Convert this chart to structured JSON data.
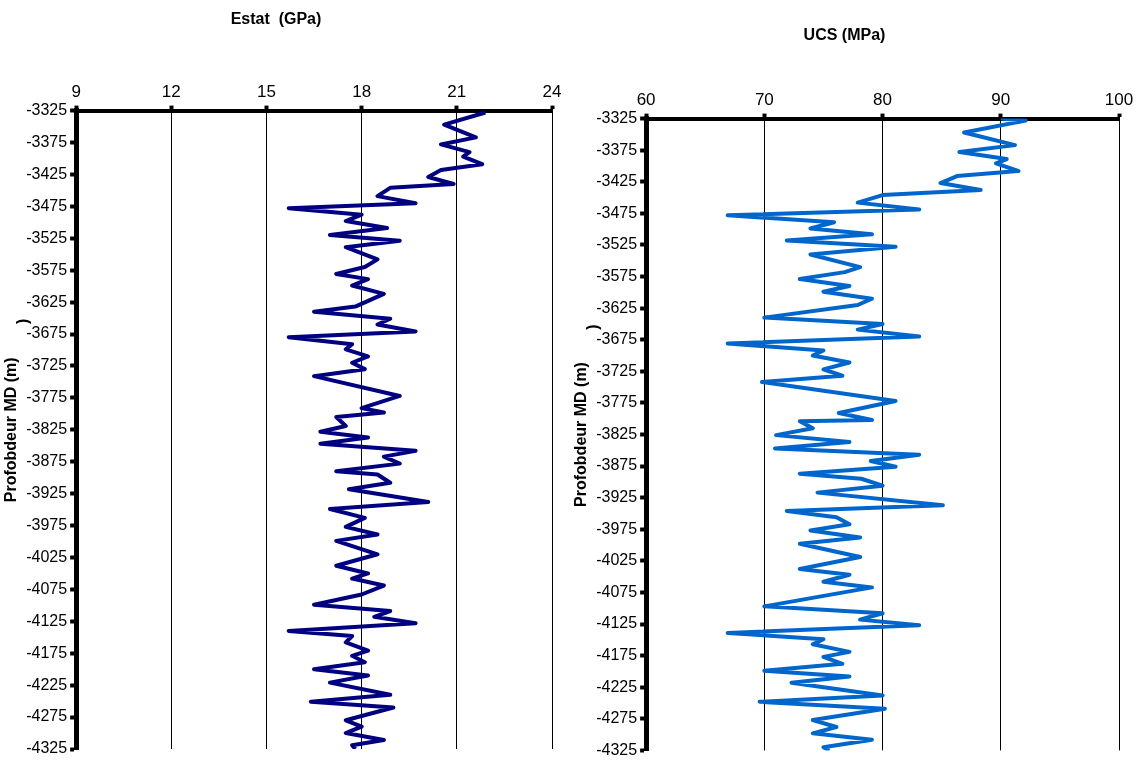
{
  "chart_data": [
    {
      "type": "line",
      "title": "Estat  (GPa)",
      "ylabel": "Profobdeur MD (m)",
      "annotations": [
        ")"
      ],
      "xlim": [
        9,
        24
      ],
      "xticks": [
        9,
        12,
        15,
        18,
        21,
        24
      ],
      "ylim": [
        -4325,
        -3325
      ],
      "yticks": [
        -3325,
        -3375,
        -3425,
        -3475,
        -3525,
        -3575,
        -3625,
        -3675,
        -3725,
        -3775,
        -3825,
        -3875,
        -3925,
        -3975,
        -4025,
        -4075,
        -4125,
        -4175,
        -4225,
        -4275,
        -4325
      ],
      "grid": "x",
      "legend": false,
      "marker": "none",
      "line_style": "solid",
      "series": [
        {
          "color": "#000080",
          "x": [
            21.9,
            20.6,
            21.6,
            20.5,
            21.4,
            21.2,
            21.8,
            20.5,
            20.1,
            20.9,
            18.9,
            18.5,
            19.7,
            15.7,
            18.0,
            17.5,
            18.8,
            17.0,
            19.2,
            17.5,
            18.5,
            18.1,
            17.2,
            18.2,
            17.7,
            18.7,
            17.8,
            16.5,
            18.9,
            18.5,
            19.7,
            15.7,
            17.7,
            17.5,
            18.2,
            17.7,
            18.1,
            16.5,
            19.2,
            18.0,
            18.7,
            17.2,
            17.5,
            16.7,
            18.2,
            16.7,
            19.7,
            18.7,
            19.2,
            17.2,
            18.5,
            18.9,
            17.6,
            20.1,
            17.0,
            18.1,
            17.5,
            18.5,
            17.2,
            18.5,
            17.2,
            18.2,
            17.7,
            18.7,
            18.0,
            16.5,
            18.9,
            18.4,
            19.7,
            15.7,
            17.7,
            17.5,
            18.2,
            17.7,
            18.1,
            16.5,
            18.2,
            17.0,
            18.9,
            16.4,
            19.0,
            17.5,
            18.0,
            17.5,
            18.7,
            17.7,
            17.8
          ],
          "values": [
            -3328,
            -3347,
            -3367,
            -3378,
            -3390,
            -3397,
            -3409,
            -3418,
            -3429,
            -3440,
            -3446,
            -3459,
            -3470,
            -3478,
            -3488,
            -3498,
            -3509,
            -3520,
            -3529,
            -3539,
            -3558,
            -3570,
            -3581,
            -3589,
            -3599,
            -3612,
            -3632,
            -3640,
            -3651,
            -3660,
            -3671,
            -3680,
            -3691,
            -3699,
            -3710,
            -3720,
            -3730,
            -3741,
            -3772,
            -3791,
            -3798,
            -3805,
            -3819,
            -3828,
            -3837,
            -3847,
            -3858,
            -3867,
            -3878,
            -3890,
            -3895,
            -3908,
            -3918,
            -3938,
            -3949,
            -3963,
            -3977,
            -3989,
            -3999,
            -4020,
            -4038,
            -4050,
            -4058,
            -4069,
            -4083,
            -4099,
            -4109,
            -4118,
            -4128,
            -4140,
            -4148,
            -4158,
            -4171,
            -4179,
            -4189,
            -4200,
            -4210,
            -4221,
            -4240,
            -4251,
            -4260,
            -4280,
            -4290,
            -4300,
            -4311,
            -4319,
            -4325
          ]
        }
      ]
    },
    {
      "type": "line",
      "title": "UCS (MPa)",
      "ylabel": "Profobdeur MD (m)",
      "annotations": [
        ")"
      ],
      "xlim": [
        60,
        100
      ],
      "xticks": [
        60,
        70,
        80,
        90,
        100
      ],
      "ylim": [
        -4325,
        -3325
      ],
      "yticks": [
        -3325,
        -3375,
        -3425,
        -3475,
        -3525,
        -3575,
        -3625,
        -3675,
        -3725,
        -3775,
        -3825,
        -3875,
        -3925,
        -3975,
        -4025,
        -4075,
        -4125,
        -4175,
        -4225,
        -4275,
        -4325
      ],
      "grid": "x",
      "legend": false,
      "marker": "none",
      "line_style": "solid",
      "series": [
        {
          "color": "#0066cc",
          "x": [
            90.0,
            92.1,
            86.9,
            91.2,
            86.5,
            90.5,
            89.6,
            91.5,
            86.3,
            84.9,
            88.3,
            80.0,
            77.9,
            83.1,
            66.9,
            75.9,
            73.9,
            79.1,
            71.9,
            81.1,
            73.9,
            78.1,
            76.8,
            73.0,
            77.2,
            75.0,
            79.1,
            77.9,
            70.0,
            80.0,
            77.9,
            83.1,
            66.9,
            75.0,
            74.1,
            77.2,
            75.0,
            76.6,
            69.8,
            81.1,
            76.3,
            79.1,
            73.0,
            74.1,
            71.0,
            77.2,
            70.9,
            83.1,
            79.0,
            81.1,
            73.0,
            78.2,
            80.0,
            74.5,
            85.1,
            71.9,
            76.1,
            77.2,
            73.9,
            78.1,
            73.0,
            78.1,
            73.0,
            77.2,
            75.0,
            79.1,
            70.0,
            80.0,
            78.1,
            83.1,
            66.9,
            75.0,
            74.1,
            77.2,
            75.0,
            76.6,
            70.0,
            77.2,
            72.3,
            80.0,
            69.6,
            80.2,
            74.1,
            76.1,
            74.1,
            79.1,
            75.0,
            75.5
          ],
          "values": [
            -3325,
            -3328,
            -3347,
            -3367,
            -3378,
            -3389,
            -3396,
            -3408,
            -3416,
            -3427,
            -3438,
            -3446,
            -3458,
            -3469,
            -3478,
            -3489,
            -3499,
            -3508,
            -3518,
            -3528,
            -3540,
            -3560,
            -3568,
            -3579,
            -3590,
            -3599,
            -3610,
            -3620,
            -3640,
            -3650,
            -3659,
            -3670,
            -3681,
            -3692,
            -3700,
            -3711,
            -3722,
            -3732,
            -3742,
            -3772,
            -3791,
            -3802,
            -3804,
            -3815,
            -3826,
            -3837,
            -3847,
            -3857,
            -3867,
            -3876,
            -3887,
            -3895,
            -3906,
            -3917,
            -3937,
            -3946,
            -3956,
            -3967,
            -3977,
            -3988,
            -3998,
            -4019,
            -4038,
            -4047,
            -4058,
            -4067,
            -4097,
            -4108,
            -4118,
            -4127,
            -4139,
            -4149,
            -4157,
            -4169,
            -4177,
            -4188,
            -4199,
            -4208,
            -4218,
            -4238,
            -4248,
            -4259,
            -4277,
            -4288,
            -4298,
            -4308,
            -4320,
            -4325
          ]
        }
      ]
    }
  ]
}
